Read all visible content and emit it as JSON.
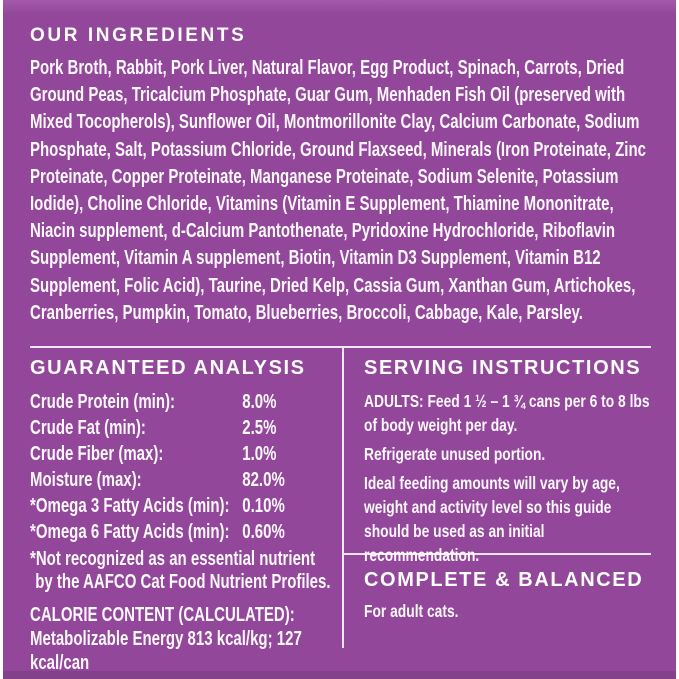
{
  "colors": {
    "background": "#92479a",
    "background_top": "#a45aab",
    "background_bottom": "#83408b",
    "text": "#ffffff",
    "divider": "#f2e8f3"
  },
  "ingredients": {
    "heading": "OUR INGREDIENTS",
    "text": "Pork Broth, Rabbit, Pork Liver, Natural Flavor, Egg Product, Spinach, Carrots, Dried Ground Peas, Tricalcium Phosphate, Guar Gum, Menhaden Fish Oil (preserved with Mixed Tocopherols), Sunflower Oil, Montmorillonite Clay, Calcium Carbonate, Sodium Phosphate, Salt, Potassium Chloride, Ground Flaxseed, Minerals (Iron Proteinate, Zinc Proteinate, Copper Proteinate, Manganese Proteinate, Sodium Selenite, Potassium Iodide), Choline Chloride, Vitamins (Vitamin E Supplement, Thiamine Mononitrate, Niacin supplement, d-Calcium Pantothenate, Pyridoxine Hydrochloride, Riboflavin Supplement, Vitamin A supplement, Biotin, Vitamin D3 Supplement, Vitamin B12 Supplement, Folic Acid), Taurine, Dried Kelp, Cassia Gum, Xanthan Gum, Artichokes, Cranberries, Pumpkin, Tomato, Blueberries, Broccoli, Cabbage, Kale, Parsley."
  },
  "guaranteed_analysis": {
    "heading": "GUARANTEED ANALYSIS",
    "rows": [
      {
        "label": "Crude Protein (min):",
        "value": "8.0%"
      },
      {
        "label": "Crude Fat (min):",
        "value": "2.5%"
      },
      {
        "label": "Crude Fiber (max):",
        "value": "1.0%"
      },
      {
        "label": "Moisture (max):",
        "value": "82.0%"
      },
      {
        "label": "*Omega 3 Fatty Acids (min):",
        "value": "0.10%"
      },
      {
        "label": "*Omega 6 Fatty Acids (min):",
        "value": "0.60%"
      }
    ],
    "footnote_line1": "*Not recognized as an essential nutrient",
    "footnote_line2": "by the AAFCO Cat Food Nutrient Profiles.",
    "calorie_heading": "CALORIE CONTENT (CALCULATED):",
    "calorie_text": "Metabolizable Energy 813 kcal/kg; 127 kcal/can"
  },
  "serving_instructions": {
    "heading": "SERVING INSTRUCTIONS",
    "paragraphs": [
      "ADULTS: Feed 1 ½ – 1 ¾ cans per 6 to 8 lbs of body weight per day.",
      "Refrigerate unused portion.",
      "Ideal feeding amounts will vary by age, weight and activity level so this guide should be used as an initial recommendation."
    ]
  },
  "complete_balanced": {
    "heading": "COMPLETE & BALANCED",
    "text": "For adult cats."
  }
}
